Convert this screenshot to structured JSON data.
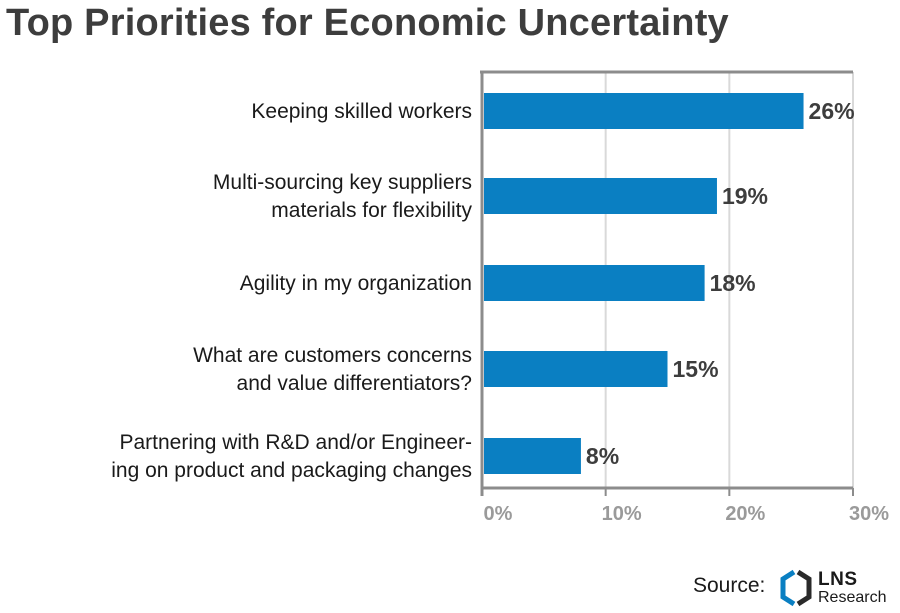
{
  "chart_data": {
    "type": "bar",
    "orientation": "horizontal",
    "title": "Top Priorities for Economic Uncertainty",
    "categories": [
      [
        "Keeping skilled workers"
      ],
      [
        "Multi-sourcing key suppliers",
        "materials for flexibility"
      ],
      [
        "Agility in my organization"
      ],
      [
        "What are customers concerns",
        "and value differentiators?"
      ],
      [
        "Partnering with R&D and/or Engineer-",
        "ing on product and packaging changes"
      ]
    ],
    "values": [
      26,
      19,
      18,
      15,
      8
    ],
    "value_labels": [
      "26%",
      "19%",
      "18%",
      "15%",
      "8%"
    ],
    "xlim": [
      0,
      30
    ],
    "x_ticks": [
      0,
      10,
      20,
      30
    ],
    "x_tick_labels": [
      "0%",
      "10%",
      "20%",
      "30%"
    ],
    "grid": true,
    "bar_color": "#0a7fc2"
  },
  "footer": {
    "source_label": "Source:",
    "logo_name": "LNS",
    "logo_sub": "Research",
    "logo_color": "#0a7fc2"
  }
}
